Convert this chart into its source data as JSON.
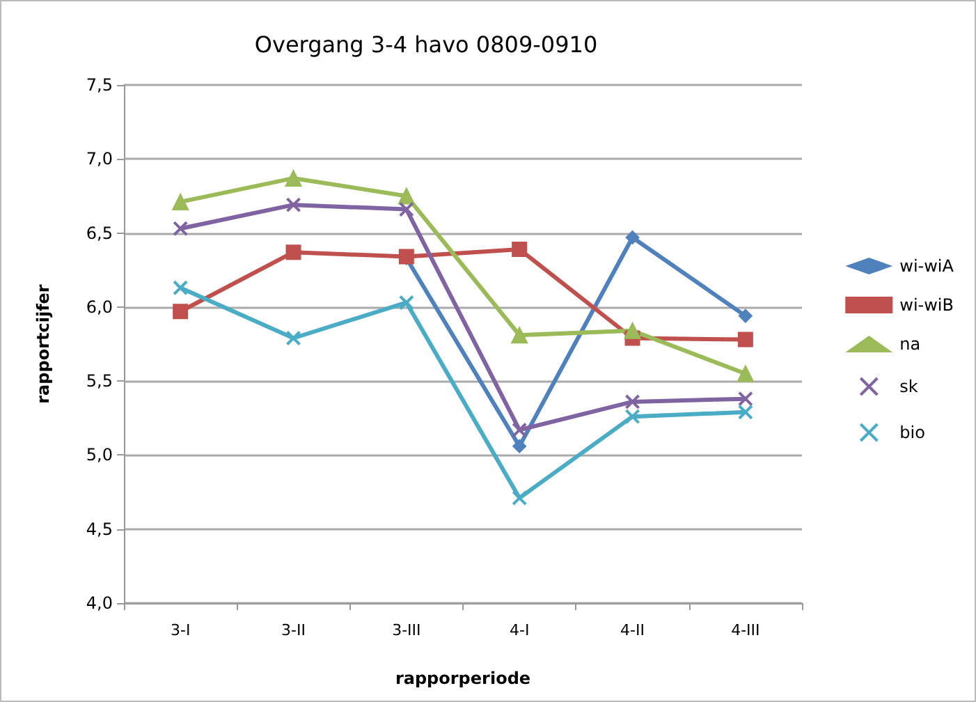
{
  "chart_data": {
    "type": "line",
    "title": "Overgang 3-4 havo 0809-0910",
    "xlabel": "rapporperiode",
    "ylabel": "rapportcijfer",
    "categories": [
      "3-I",
      "3-II",
      "3-III",
      "4-I",
      "4-II",
      "4-III"
    ],
    "series": [
      {
        "name": "wi-wiA",
        "color": "#4f81bd",
        "marker": "diamond",
        "values": [
          null,
          null,
          6.33,
          5.06,
          6.47,
          5.94
        ]
      },
      {
        "name": "wi-wiB",
        "color": "#c0504d",
        "marker": "square",
        "values": [
          5.97,
          6.37,
          6.34,
          6.39,
          5.79,
          5.78
        ]
      },
      {
        "name": "na",
        "color": "#9bbb59",
        "marker": "triangle",
        "values": [
          6.71,
          6.87,
          6.75,
          5.81,
          5.84,
          5.55
        ]
      },
      {
        "name": "sk",
        "color": "#8064a2",
        "marker": "cross",
        "values": [
          6.53,
          6.69,
          6.66,
          5.17,
          5.36,
          5.38
        ]
      },
      {
        "name": "bio",
        "color": "#4bacc6",
        "marker": "cross",
        "values": [
          6.13,
          5.79,
          6.03,
          4.71,
          5.26,
          5.29
        ]
      }
    ],
    "ylim": [
      4,
      7.5
    ],
    "yticks": [
      {
        "value": 4,
        "label": "4,0"
      },
      {
        "value": 4.5,
        "label": "4,5"
      },
      {
        "value": 5,
        "label": "5,0"
      },
      {
        "value": 5.5,
        "label": "5,5"
      },
      {
        "value": 6,
        "label": "6,0"
      },
      {
        "value": 6.5,
        "label": "6,5"
      },
      {
        "value": 7,
        "label": "7,0"
      },
      {
        "value": 7.5,
        "label": "7,5"
      }
    ],
    "grid": "y",
    "legend": "right"
  }
}
